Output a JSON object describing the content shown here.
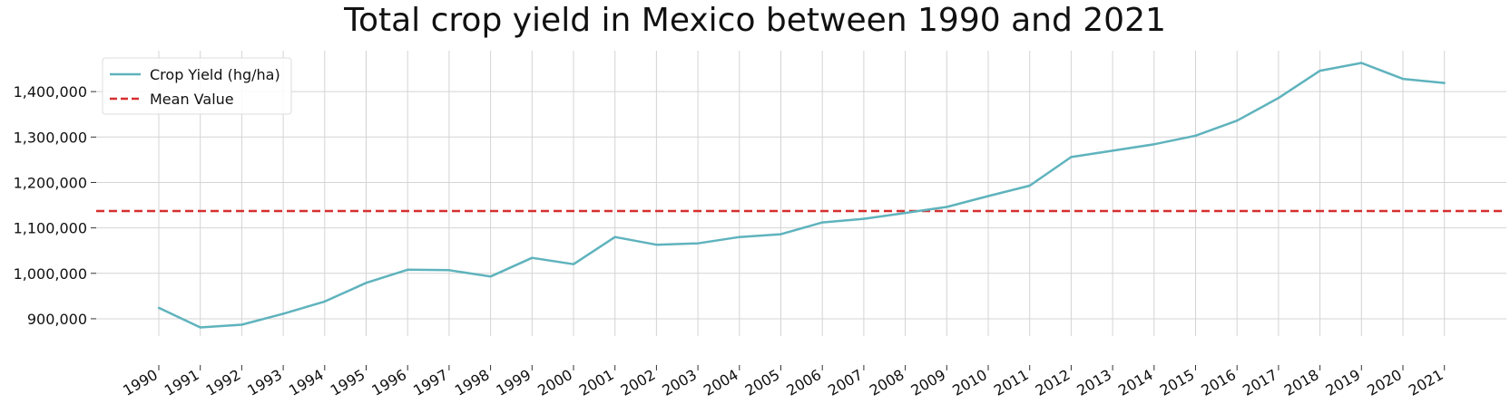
{
  "chart_data": {
    "type": "line",
    "title": "Total crop yield in Mexico between 1990 and 2021",
    "xlabel": "",
    "ylabel": "",
    "x": [
      "1990",
      "1991",
      "1992",
      "1993",
      "1994",
      "1995",
      "1996",
      "1997",
      "1998",
      "1999",
      "2000",
      "2001",
      "2002",
      "2003",
      "2004",
      "2005",
      "2006",
      "2007",
      "2008",
      "2009",
      "2010",
      "2011",
      "2012",
      "2013",
      "2014",
      "2015",
      "2016",
      "2017",
      "2018",
      "2019",
      "2020",
      "2021"
    ],
    "series": [
      {
        "name": "Crop Yield (hg/ha)",
        "color": "#5fb3bd",
        "style": "solid",
        "values": [
          924000,
          881000,
          887000,
          911000,
          938000,
          979000,
          1008000,
          1007000,
          993000,
          1034000,
          1020000,
          1080000,
          1063000,
          1066000,
          1080000,
          1086000,
          1112000,
          1120000,
          1133000,
          1146000,
          1170000,
          1193000,
          1256000,
          1270000,
          1284000,
          1303000,
          1336000,
          1386000,
          1446000,
          1463000,
          1428000,
          1419000
        ]
      }
    ],
    "mean": {
      "name": "Mean Value",
      "value": 1137000,
      "color": "#d62f2f",
      "style": "dashed"
    },
    "yticks": [
      900000,
      1000000,
      1100000,
      1200000,
      1300000,
      1400000
    ],
    "ytick_labels": [
      "900,000",
      "1,000,000",
      "1,100,000",
      "1,200,000",
      "1,300,000",
      "1,400,000"
    ],
    "ylim": [
      862000,
      1490000
    ],
    "grid": true,
    "legend_position": "top-left"
  }
}
